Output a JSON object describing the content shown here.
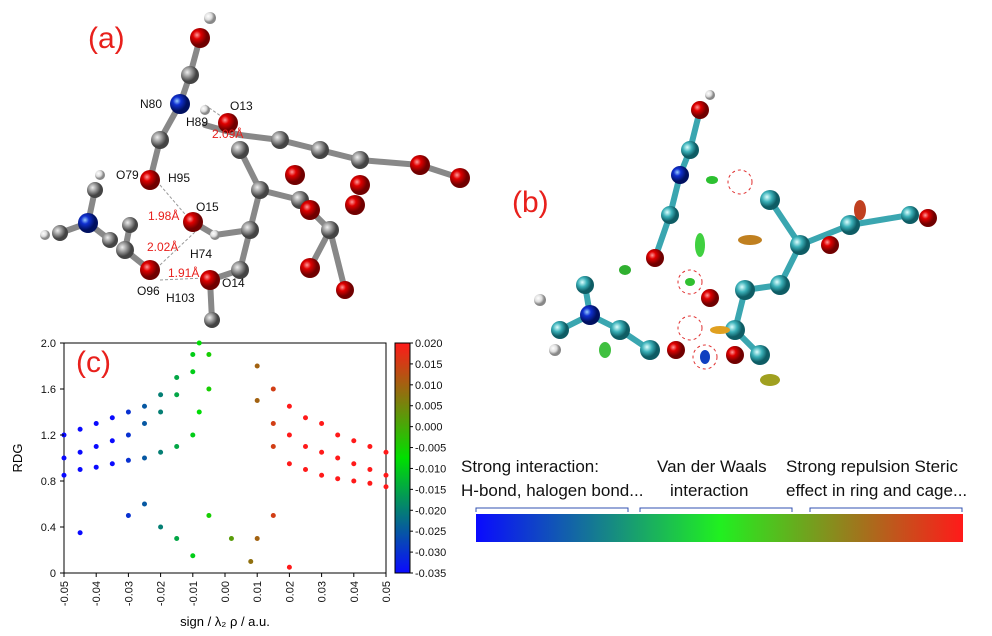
{
  "panel_a": {
    "label": "(a)",
    "atoms": [
      "N80",
      "H89",
      "O13",
      "O79",
      "H95",
      "O15",
      "H74",
      "O96",
      "H103",
      "O14"
    ],
    "distances": [
      "2.09Å",
      "1.98Å",
      "2.02Å",
      "1.91Å"
    ]
  },
  "panel_b": {
    "label": "(b)",
    "legend": [
      "Strong interaction:",
      "H-bond, halogen bond...",
      "Van der Waals",
      "interaction",
      "Strong repulsion Steric",
      "effect in ring and cage..."
    ]
  },
  "chart_data": {
    "type": "scatter",
    "panel_label": "(c)",
    "xlabel": "sign / λ₂ ρ / a.u.",
    "ylabel": "RDG",
    "xlim": [
      -0.05,
      0.05
    ],
    "ylim": [
      0,
      2.0
    ],
    "xticks": [
      -0.05,
      -0.04,
      -0.03,
      -0.02,
      -0.01,
      {
        "value": 0,
        "label": "0.00"
      },
      0.01,
      0.02,
      0.03,
      0.04,
      0.05
    ],
    "yticks": [
      0,
      0.4,
      0.8,
      1.2,
      1.6,
      {
        "value": 2,
        "label": "2.0"
      }
    ],
    "clim": [
      -0.035,
      0.02
    ],
    "colorscale": [
      "#0a0aff",
      "#00e000",
      "#ff1a1a"
    ],
    "cticks": [
      {
        "value": 0.02,
        "label": "0.020"
      },
      0.015,
      {
        "value": 0.01,
        "label": "0.010"
      },
      0.005,
      {
        "value": 0,
        "label": "0.000"
      },
      -0.005,
      {
        "value": -0.01,
        "label": "-0.010"
      },
      -0.015,
      {
        "value": -0.02,
        "label": "-0.020"
      },
      -0.025,
      {
        "value": -0.03,
        "label": "-0.030"
      },
      -0.035
    ],
    "x": [
      -0.05,
      -0.05,
      -0.05,
      -0.045,
      -0.045,
      -0.045,
      -0.04,
      -0.04,
      -0.04,
      -0.035,
      -0.035,
      -0.035,
      -0.03,
      -0.03,
      -0.03,
      -0.025,
      -0.025,
      -0.025,
      -0.02,
      -0.02,
      -0.02,
      -0.015,
      -0.015,
      -0.015,
      -0.01,
      -0.01,
      -0.01,
      -0.008,
      -0.008,
      -0.005,
      -0.005,
      -0.045,
      -0.03,
      -0.025,
      -0.02,
      -0.015,
      -0.01,
      -0.005,
      0.002,
      0.008,
      0.01,
      0.015,
      0.02,
      0.01,
      0.01,
      0.015,
      0.015,
      0.015,
      0.02,
      0.02,
      0.02,
      0.025,
      0.025,
      0.025,
      0.03,
      0.03,
      0.03,
      0.035,
      0.035,
      0.035,
      0.04,
      0.04,
      0.04,
      0.045,
      0.045,
      0.045,
      0.05,
      0.05,
      0.05
    ],
    "values": [
      1.0,
      1.2,
      0.85,
      1.05,
      1.25,
      0.9,
      1.1,
      1.3,
      0.92,
      1.15,
      1.35,
      0.95,
      1.2,
      1.4,
      0.98,
      1.3,
      1.45,
      1.0,
      1.4,
      1.55,
      1.05,
      1.55,
      1.7,
      1.1,
      1.75,
      1.9,
      1.2,
      2.0,
      1.4,
      1.6,
      1.9,
      0.35,
      0.5,
      0.6,
      0.4,
      0.3,
      0.15,
      0.5,
      0.3,
      0.1,
      0.3,
      0.5,
      0.05,
      1.8,
      1.5,
      1.6,
      1.3,
      1.1,
      1.45,
      1.2,
      0.95,
      1.35,
      1.1,
      0.9,
      1.3,
      1.05,
      0.85,
      1.2,
      1.0,
      0.82,
      1.15,
      0.95,
      0.8,
      1.1,
      0.9,
      0.78,
      1.05,
      0.85,
      0.75
    ]
  }
}
